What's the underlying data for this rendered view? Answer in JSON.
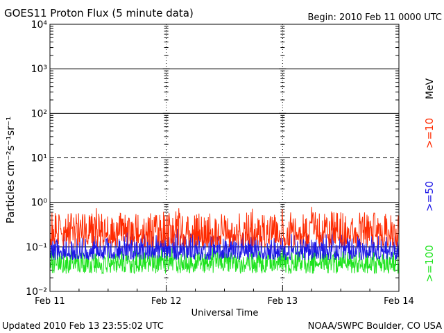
{
  "header": {
    "title": "GOES11 Proton Flux (5 minute data)",
    "begin": "Begin: 2010 Feb 11 0000 UTC"
  },
  "footer": {
    "updated": "Updated 2010 Feb 13 23:55:02 UTC",
    "credit": "NOAA/SWPC Boulder, CO USA"
  },
  "chart_data": {
    "type": "line",
    "title": "GOES11 Proton Flux (5 minute data)",
    "xlabel": "Universal Time",
    "ylabel": "Particles cm⁻²s⁻¹sr⁻¹",
    "unit_label": "MeV",
    "x_ticks": [
      "Feb 11",
      "Feb 12",
      "Feb 13",
      "Feb 14"
    ],
    "xlim": [
      "2010-02-11T00:00",
      "2010-02-14T00:00"
    ],
    "y_scale": "log",
    "ylim": [
      0.01,
      10000
    ],
    "y_ticks": [
      "10⁻²",
      "10⁻¹",
      "10⁰",
      "10¹",
      "10²",
      "10³",
      "10⁴"
    ],
    "reference_lines": [
      {
        "y": 0.1,
        "style": "solid"
      },
      {
        "y": 1,
        "style": "solid"
      },
      {
        "y": 10,
        "style": "dashed"
      },
      {
        "y": 100,
        "style": "solid"
      },
      {
        "y": 1000,
        "style": "solid"
      }
    ],
    "series": [
      {
        "name": ">=10",
        "color": "#ff2a00",
        "typical": 0.2,
        "low": 0.1,
        "high": 0.6,
        "max": 0.8
      },
      {
        "name": ">=50",
        "color": "#1c16e6",
        "typical": 0.08,
        "low": 0.05,
        "high": 0.2,
        "max": 0.3
      },
      {
        "name": ">=100",
        "color": "#1fe31f",
        "typical": 0.045,
        "low": 0.025,
        "high": 0.08,
        "max": 0.1
      }
    ]
  }
}
